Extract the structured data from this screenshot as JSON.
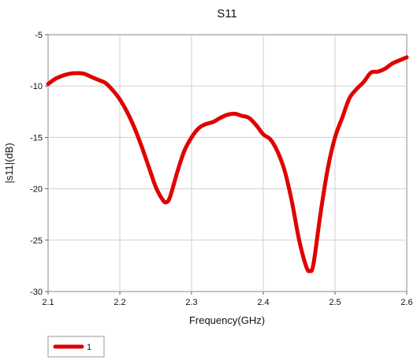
{
  "chart_data": {
    "type": "line",
    "title": "S11",
    "xlabel": "Frequency(GHz)",
    "ylabel": "|s11|(dB)",
    "xlim": [
      2.1,
      2.6
    ],
    "ylim": [
      -30,
      -5
    ],
    "x_ticks": [
      2.1,
      2.2,
      2.3,
      2.4,
      2.5,
      2.6
    ],
    "x_tick_labels": [
      "2.1",
      "2.2",
      "2.3",
      "2.4",
      "2.5",
      "2.6"
    ],
    "y_ticks": [
      -30,
      -25,
      -20,
      -15,
      -10,
      -5
    ],
    "y_tick_labels": [
      "-30",
      "-25",
      "-20",
      "-15",
      "-10",
      "-5"
    ],
    "grid": true,
    "legend_position": "bottom-left",
    "series": [
      {
        "name": "1",
        "color": "#e00000",
        "x": [
          2.1,
          2.11,
          2.12,
          2.13,
          2.14,
          2.15,
          2.16,
          2.17,
          2.18,
          2.19,
          2.2,
          2.21,
          2.22,
          2.23,
          2.24,
          2.25,
          2.26,
          2.265,
          2.27,
          2.28,
          2.29,
          2.3,
          2.31,
          2.32,
          2.33,
          2.34,
          2.35,
          2.36,
          2.37,
          2.38,
          2.39,
          2.4,
          2.41,
          2.42,
          2.43,
          2.44,
          2.45,
          2.46,
          2.465,
          2.47,
          2.48,
          2.49,
          2.5,
          2.51,
          2.52,
          2.53,
          2.54,
          2.55,
          2.56,
          2.57,
          2.58,
          2.59,
          2.6
        ],
        "y": [
          -9.8,
          -9.3,
          -9.0,
          -8.8,
          -8.75,
          -8.8,
          -9.1,
          -9.4,
          -9.7,
          -10.4,
          -11.3,
          -12.5,
          -14.0,
          -15.8,
          -17.8,
          -19.8,
          -21.1,
          -21.3,
          -20.8,
          -18.4,
          -16.3,
          -15.0,
          -14.1,
          -13.7,
          -13.5,
          -13.1,
          -12.8,
          -12.7,
          -12.9,
          -13.1,
          -13.8,
          -14.7,
          -15.2,
          -16.4,
          -18.3,
          -21.3,
          -25.0,
          -27.6,
          -28.0,
          -27.3,
          -22.3,
          -18.0,
          -15.0,
          -13.1,
          -11.2,
          -10.3,
          -9.6,
          -8.7,
          -8.6,
          -8.3,
          -7.8,
          -7.5,
          -7.2
        ]
      }
    ]
  }
}
